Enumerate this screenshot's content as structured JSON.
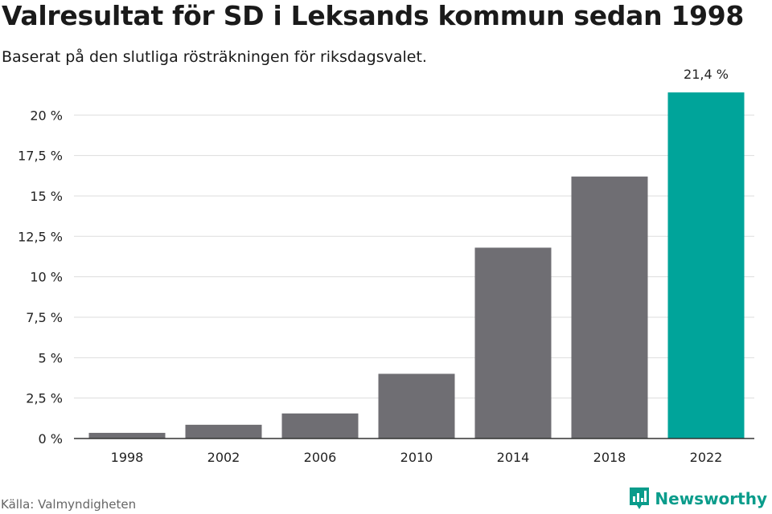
{
  "header": {
    "title": "Valresultat för SD i Leksands kommun sedan 1998",
    "subtitle": "Baserat på den slutliga rösträkningen för riksdagsvalet."
  },
  "footer": {
    "source": "Källa: Valmyndigheten",
    "brand": "Newsworthy"
  },
  "colors": {
    "bar": "#6f6e73",
    "highlight": "#00a49a",
    "grid": "#dddddd",
    "axis": "#333333",
    "brand": "#0a9c8b"
  },
  "chart_data": {
    "type": "bar",
    "categories": [
      "1998",
      "2002",
      "2006",
      "2010",
      "2014",
      "2018",
      "2022"
    ],
    "values": [
      0.35,
      0.85,
      1.55,
      4.0,
      11.8,
      16.2,
      21.4
    ],
    "highlight_index": 6,
    "data_labels": [
      "",
      "",
      "",
      "",
      "",
      "",
      "21,4 %"
    ],
    "ylim": [
      0,
      22
    ],
    "yticks": [
      0,
      2.5,
      5,
      7.5,
      10,
      12.5,
      15,
      17.5,
      20
    ],
    "ytick_labels": [
      "0 %",
      "2,5 %",
      "5 %",
      "7,5 %",
      "10 %",
      "12,5 %",
      "15 %",
      "17,5 %",
      "20 %"
    ],
    "grid": true,
    "legend": "none"
  }
}
